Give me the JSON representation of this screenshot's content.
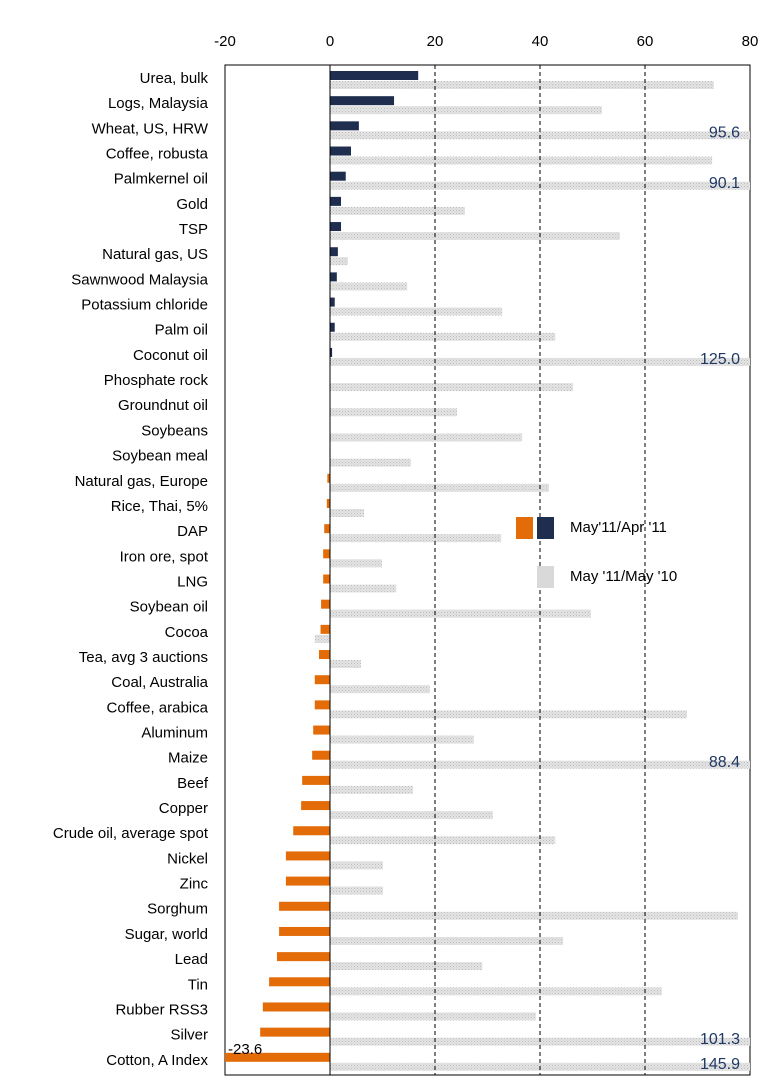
{
  "chart_data": {
    "type": "hbar",
    "categories": [
      "Urea, bulk",
      "Logs, Malaysia",
      "Wheat, US, HRW",
      "Coffee, robusta",
      "Palmkernel oil",
      "Gold",
      "TSP",
      "Natural gas, US",
      "Sawnwood Malaysia",
      "Potassium chloride",
      "Palm oil",
      "Coconut oil",
      "Phosphate rock",
      "Groundnut oil",
      "Soybeans",
      "Soybean meal",
      "Natural gas, Europe",
      "Rice, Thai, 5%",
      "DAP",
      "Iron ore, spot",
      "LNG",
      "Soybean oil",
      "Cocoa",
      "Tea, avg 3 auctions",
      "Coal, Australia",
      "Coffee, arabica",
      "Aluminum",
      "Maize",
      "Beef",
      "Copper",
      "Crude oil, average spot",
      "Nickel",
      "Zinc",
      "Sorghum",
      "Sugar, world",
      "Lead",
      "Tin",
      "Rubber RSS3",
      "Silver",
      "Cotton, A Index"
    ],
    "series": [
      {
        "name": "May'11/Apr '11",
        "color": "#1f2d4e",
        "negative_color": "#e36c09",
        "values": [
          16.8,
          12.2,
          5.5,
          4.0,
          3.0,
          2.1,
          2.1,
          1.5,
          1.3,
          0.9,
          0.9,
          0.4,
          0,
          0,
          0,
          -0.1,
          -0.5,
          -0.6,
          -1.1,
          -1.3,
          -1.3,
          -1.7,
          -1.8,
          -2.1,
          -2.9,
          -2.9,
          -3.2,
          -3.4,
          -5.3,
          -5.5,
          -7.0,
          -8.4,
          -8.4,
          -9.7,
          -9.7,
          -10.1,
          -11.6,
          -12.8,
          -13.3,
          -23.6
        ],
        "value_labels": [
          null,
          null,
          null,
          null,
          null,
          null,
          null,
          null,
          null,
          null,
          null,
          null,
          null,
          null,
          null,
          null,
          null,
          null,
          null,
          null,
          null,
          null,
          null,
          null,
          null,
          null,
          null,
          null,
          null,
          null,
          null,
          null,
          null,
          null,
          null,
          null,
          null,
          null,
          null,
          "-23.6"
        ]
      },
      {
        "name": "May '11/May '10",
        "color": "#d9d9d9",
        "values": [
          73.1,
          51.8,
          95.6,
          72.8,
          90.1,
          25.7,
          55.2,
          3.4,
          14.7,
          32.8,
          42.9,
          125.0,
          46.3,
          24.2,
          36.6,
          15.4,
          41.7,
          6.5,
          32.6,
          9.9,
          12.6,
          49.7,
          -2.9,
          5.9,
          19.0,
          68.0,
          27.4,
          88.4,
          15.8,
          31.0,
          42.9,
          10.1,
          10.1,
          77.7,
          44.4,
          29.0,
          63.2,
          39.2,
          101.3,
          145.9
        ],
        "value_labels": [
          null,
          null,
          "95.6",
          null,
          "90.1",
          null,
          null,
          null,
          null,
          null,
          null,
          "125.0",
          null,
          null,
          null,
          null,
          null,
          null,
          null,
          null,
          null,
          null,
          null,
          null,
          null,
          null,
          null,
          "88.4",
          null,
          null,
          null,
          null,
          null,
          null,
          null,
          null,
          null,
          null,
          "101.3",
          "145.9"
        ]
      }
    ],
    "xlim": [
      -20,
      80
    ],
    "xticks": [
      -20,
      0,
      20,
      40,
      60,
      80
    ]
  }
}
